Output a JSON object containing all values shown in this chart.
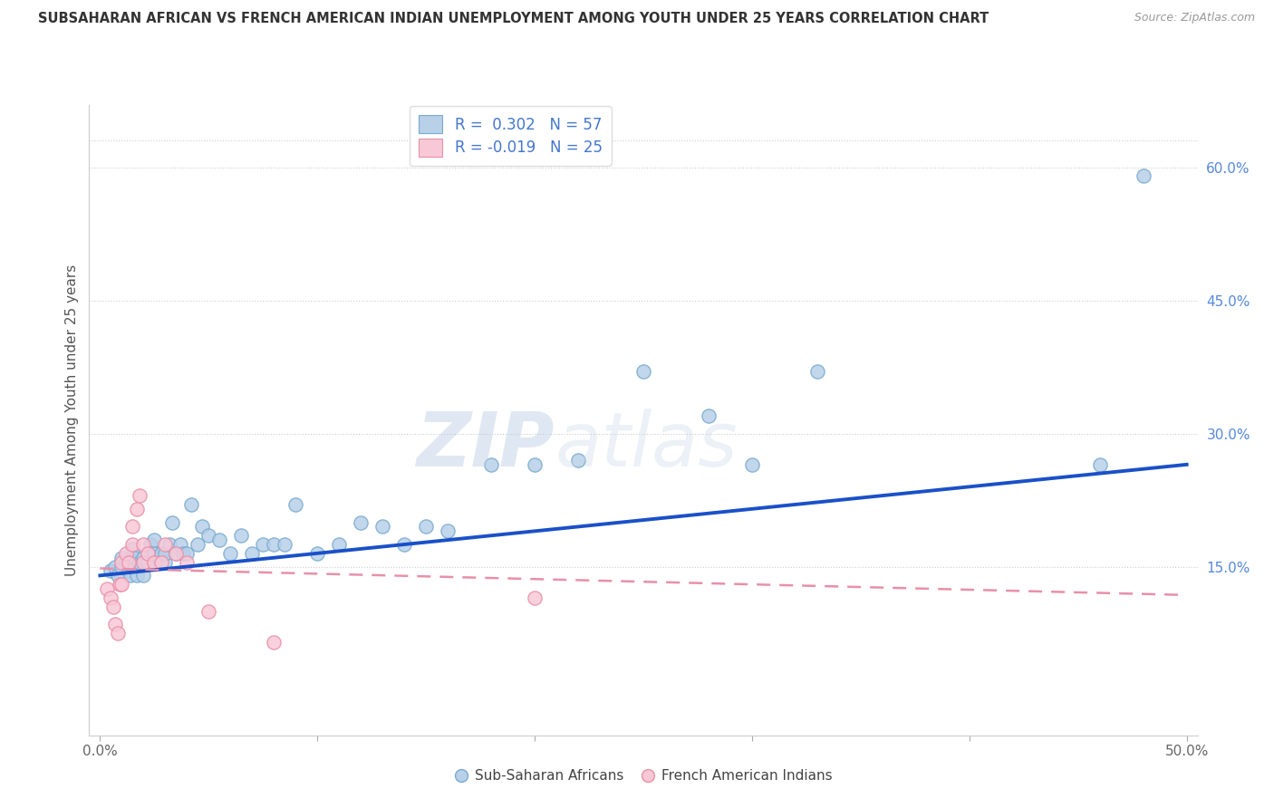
{
  "title": "SUBSAHARAN AFRICAN VS FRENCH AMERICAN INDIAN UNEMPLOYMENT AMONG YOUTH UNDER 25 YEARS CORRELATION CHART",
  "source": "Source: ZipAtlas.com",
  "ylabel": "Unemployment Among Youth under 25 years",
  "xlim": [
    -0.005,
    0.505
  ],
  "ylim": [
    -0.04,
    0.67
  ],
  "xticks": [
    0.0,
    0.1,
    0.2,
    0.3,
    0.4,
    0.5
  ],
  "xticklabels": [
    "0.0%",
    "",
    "",
    "",
    "",
    "50.0%"
  ],
  "yticks_right": [
    0.15,
    0.3,
    0.45,
    0.6
  ],
  "yticklabels_right": [
    "15.0%",
    "30.0%",
    "45.0%",
    "60.0%"
  ],
  "blue_color": "#b8d0e8",
  "blue_edge_color": "#7aaad0",
  "pink_color": "#f8c8d8",
  "pink_edge_color": "#e890a8",
  "blue_line_color": "#1a50c8",
  "pink_line_color": "#e890a8",
  "watermark_zip": "ZIP",
  "watermark_atlas": "atlas",
  "legend_label1": "R =  0.302   N = 57",
  "legend_label2": "R = -0.019   N = 25",
  "blue_scatter_x": [
    0.005,
    0.007,
    0.008,
    0.01,
    0.01,
    0.012,
    0.013,
    0.014,
    0.015,
    0.015,
    0.016,
    0.017,
    0.018,
    0.02,
    0.02,
    0.022,
    0.023,
    0.025,
    0.025,
    0.027,
    0.028,
    0.03,
    0.03,
    0.032,
    0.033,
    0.035,
    0.037,
    0.038,
    0.04,
    0.042,
    0.045,
    0.047,
    0.05,
    0.055,
    0.06,
    0.065,
    0.07,
    0.075,
    0.08,
    0.085,
    0.09,
    0.1,
    0.11,
    0.12,
    0.13,
    0.14,
    0.15,
    0.16,
    0.18,
    0.2,
    0.22,
    0.25,
    0.28,
    0.3,
    0.33,
    0.46,
    0.48
  ],
  "blue_scatter_y": [
    0.145,
    0.15,
    0.14,
    0.15,
    0.16,
    0.155,
    0.145,
    0.14,
    0.155,
    0.17,
    0.16,
    0.14,
    0.155,
    0.14,
    0.16,
    0.155,
    0.175,
    0.165,
    0.18,
    0.16,
    0.165,
    0.155,
    0.165,
    0.175,
    0.2,
    0.165,
    0.175,
    0.165,
    0.165,
    0.22,
    0.175,
    0.195,
    0.185,
    0.18,
    0.165,
    0.185,
    0.165,
    0.175,
    0.175,
    0.175,
    0.22,
    0.165,
    0.175,
    0.2,
    0.195,
    0.175,
    0.195,
    0.19,
    0.265,
    0.265,
    0.27,
    0.37,
    0.32,
    0.265,
    0.37,
    0.265,
    0.59
  ],
  "pink_scatter_x": [
    0.003,
    0.005,
    0.006,
    0.007,
    0.008,
    0.009,
    0.01,
    0.01,
    0.012,
    0.013,
    0.015,
    0.015,
    0.017,
    0.018,
    0.02,
    0.02,
    0.022,
    0.025,
    0.028,
    0.03,
    0.035,
    0.04,
    0.05,
    0.08,
    0.2
  ],
  "pink_scatter_y": [
    0.125,
    0.115,
    0.105,
    0.085,
    0.075,
    0.13,
    0.13,
    0.155,
    0.165,
    0.155,
    0.175,
    0.195,
    0.215,
    0.23,
    0.155,
    0.175,
    0.165,
    0.155,
    0.155,
    0.175,
    0.165,
    0.155,
    0.1,
    0.065,
    0.115
  ],
  "blue_trend_x": [
    0.0,
    0.5
  ],
  "blue_trend_y": [
    0.14,
    0.265
  ],
  "pink_trend_x": [
    0.0,
    0.5
  ],
  "pink_trend_y": [
    0.148,
    0.118
  ]
}
